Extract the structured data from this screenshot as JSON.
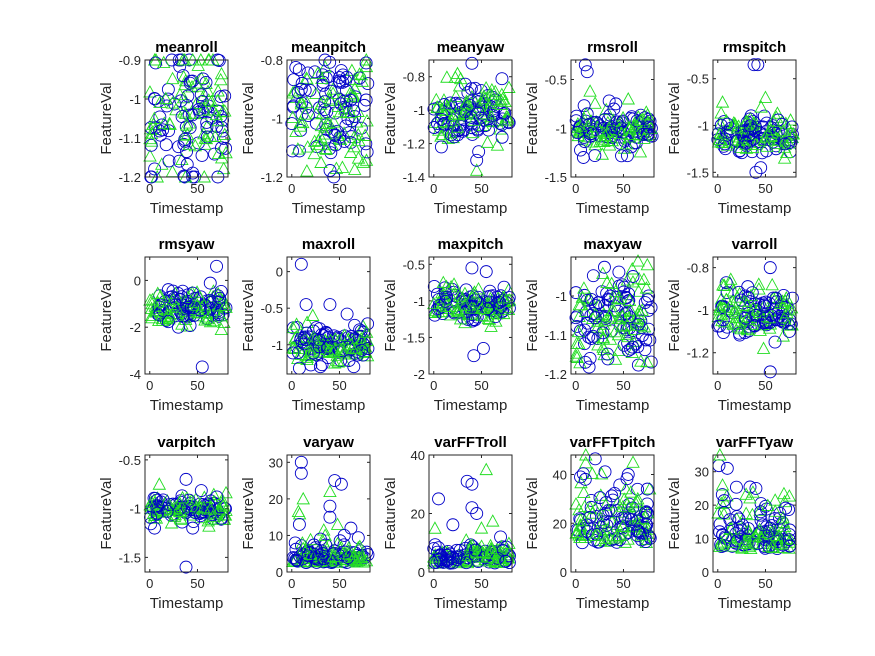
{
  "figure": {
    "background": "#ffffff"
  },
  "chart_data": [
    {
      "type": "scatter",
      "title": "meanroll",
      "xlabel": "Timestamp",
      "ylabel": "FeatureVal",
      "xlim": [
        -5,
        82
      ],
      "ylim": [
        -1.2,
        -0.9
      ],
      "xticks": [
        0,
        50
      ],
      "yticks": [
        -1.2,
        -1.1,
        -1,
        -0.9
      ],
      "ytick_labels": [
        "-1.2",
        "-1.1",
        "-1",
        "-0.9"
      ],
      "center": -1.04,
      "spread": 0.1,
      "skew": 0,
      "outliers": [
        [
          35,
          -0.94
        ],
        [
          45,
          -1.19
        ],
        [
          72,
          -1.14
        ]
      ]
    },
    {
      "type": "scatter",
      "title": "meanpitch",
      "xlabel": "Timestamp",
      "ylabel": "FeatureVal",
      "xlim": [
        -5,
        82
      ],
      "ylim": [
        -1.2,
        -0.8
      ],
      "xticks": [
        0,
        50
      ],
      "yticks": [
        -1.2,
        -1,
        -0.8
      ],
      "ytick_labels": [
        "-1.2",
        "-1",
        "-0.8"
      ],
      "center": -0.98,
      "spread": 0.09,
      "skew": 0,
      "outliers": [
        [
          50,
          -0.86
        ],
        [
          44,
          -1.2
        ],
        [
          75,
          -1.15
        ],
        [
          10,
          -0.9
        ]
      ]
    },
    {
      "type": "scatter",
      "title": "meanyaw",
      "xlabel": "Timestamp",
      "ylabel": "FeatureVal",
      "xlim": [
        -5,
        82
      ],
      "ylim": [
        -1.4,
        -0.7
      ],
      "xticks": [
        0,
        50
      ],
      "yticks": [
        -1.4,
        -1.2,
        -1,
        -0.8
      ],
      "ytick_labels": [
        "-1.4",
        "-1.2",
        "-1",
        "-0.8"
      ],
      "center": -1.02,
      "spread": 0.09,
      "skew": 0,
      "outliers": [
        [
          40,
          -0.72
        ],
        [
          8,
          -1.22
        ],
        [
          45,
          -1.36
        ],
        [
          45,
          -1.3
        ]
      ]
    },
    {
      "type": "scatter",
      "title": "rmsroll",
      "xlabel": "Timestamp",
      "ylabel": "FeatureVal",
      "xlim": [
        -5,
        82
      ],
      "ylim": [
        -1.5,
        -0.3
      ],
      "xticks": [
        0,
        50
      ],
      "yticks": [
        -1.5,
        -1,
        -0.5
      ],
      "ytick_labels": [
        "-1.5",
        "-1",
        "-0.5"
      ],
      "center": -1.02,
      "spread": 0.1,
      "skew": 0,
      "outliers": [
        [
          10,
          -0.35
        ],
        [
          12,
          -0.42
        ],
        [
          15,
          -0.62
        ],
        [
          35,
          -0.72
        ],
        [
          42,
          -0.75
        ],
        [
          55,
          -0.7
        ],
        [
          20,
          -1.28
        ],
        [
          8,
          -1.3
        ]
      ]
    },
    {
      "type": "scatter",
      "title": "rmspitch",
      "xlabel": "Timestamp",
      "ylabel": "FeatureVal",
      "xlim": [
        -5,
        82
      ],
      "ylim": [
        -1.55,
        -0.3
      ],
      "xticks": [
        0,
        50
      ],
      "yticks": [
        -1.5,
        -1,
        -0.5
      ],
      "ytick_labels": [
        "-1.5",
        "-1",
        "-0.5"
      ],
      "center": -1.08,
      "spread": 0.11,
      "skew": 0,
      "outliers": [
        [
          38,
          -0.35
        ],
        [
          42,
          -0.35
        ],
        [
          50,
          -0.7
        ],
        [
          45,
          -1.45
        ],
        [
          40,
          -1.5
        ],
        [
          5,
          -0.75
        ]
      ]
    },
    {
      "type": "scatter",
      "title": "rmsyaw",
      "xlabel": "Timestamp",
      "ylabel": "FeatureVal",
      "xlim": [
        -5,
        82
      ],
      "ylim": [
        -4,
        1
      ],
      "xticks": [
        0,
        50
      ],
      "yticks": [
        -4,
        -2,
        0
      ],
      "ytick_labels": [
        "-4",
        "-2",
        "0"
      ],
      "center": -1.1,
      "spread": 0.4,
      "skew": 0,
      "outliers": [
        [
          70,
          0.6
        ],
        [
          55,
          -3.7
        ],
        [
          75,
          -2.1
        ],
        [
          30,
          -2.0
        ]
      ]
    },
    {
      "type": "scatter",
      "title": "maxroll",
      "xlabel": "Timestamp",
      "ylabel": "FeatureVal",
      "xlim": [
        -5,
        82
      ],
      "ylim": [
        -1.4,
        0.2
      ],
      "xticks": [
        0,
        50
      ],
      "yticks": [
        -1,
        -0.5,
        0
      ],
      "ytick_labels": [
        "-1",
        "-0.5",
        "0"
      ],
      "center": -1.0,
      "spread": 0.12,
      "skew": 0,
      "outliers": [
        [
          10,
          0.1
        ],
        [
          15,
          -0.45
        ],
        [
          22,
          -0.6
        ],
        [
          40,
          -0.45
        ],
        [
          58,
          -0.58
        ],
        [
          5,
          -0.72
        ],
        [
          8,
          -1.32
        ],
        [
          30,
          -1.3
        ],
        [
          45,
          -1.25
        ],
        [
          65,
          -1.3
        ]
      ]
    },
    {
      "type": "scatter",
      "title": "maxpitch",
      "xlabel": "Timestamp",
      "ylabel": "FeatureVal",
      "xlim": [
        -5,
        82
      ],
      "ylim": [
        -2,
        -0.4
      ],
      "xticks": [
        0,
        50
      ],
      "yticks": [
        -2,
        -1.5,
        -1,
        -0.5
      ],
      "ytick_labels": [
        "-2",
        "-1.5",
        "-1",
        "-0.5"
      ],
      "center": -1.05,
      "spread": 0.11,
      "skew": 0,
      "outliers": [
        [
          40,
          -0.55
        ],
        [
          55,
          -0.6
        ],
        [
          10,
          -0.75
        ],
        [
          42,
          -1.75
        ],
        [
          52,
          -1.65
        ],
        [
          60,
          -1.35
        ]
      ]
    },
    {
      "type": "scatter",
      "title": "maxyaw",
      "xlabel": "Timestamp",
      "ylabel": "FeatureVal",
      "xlim": [
        -5,
        82
      ],
      "ylim": [
        -1.2,
        -0.9
      ],
      "xticks": [
        0,
        50
      ],
      "yticks": [
        -1.2,
        -1.1,
        -1
      ],
      "ytick_labels": [
        "-1.2",
        "-1.1",
        "-1"
      ],
      "center": -1.05,
      "spread": 0.06,
      "skew": 0,
      "outliers": [
        [
          10,
          -1.17
        ],
        [
          15,
          -1.16
        ],
        [
          45,
          -1.14
        ],
        [
          55,
          -1.14
        ],
        [
          65,
          -1.13
        ],
        [
          75,
          -0.92
        ],
        [
          60,
          -0.95
        ]
      ]
    },
    {
      "type": "scatter",
      "title": "varroll",
      "xlabel": "Timestamp",
      "ylabel": "FeatureVal",
      "xlim": [
        -5,
        82
      ],
      "ylim": [
        -1.3,
        -0.75
      ],
      "xticks": [
        0,
        50
      ],
      "yticks": [
        -1.2,
        -1,
        -0.8
      ],
      "ytick_labels": [
        "-1.2",
        "-1",
        "-0.8"
      ],
      "center": -1.0,
      "spread": 0.06,
      "skew": 0,
      "outliers": [
        [
          55,
          -0.8
        ],
        [
          55,
          -1.29
        ],
        [
          48,
          -1.18
        ],
        [
          60,
          -1.15
        ],
        [
          75,
          -1.1
        ]
      ]
    },
    {
      "type": "scatter",
      "title": "varpitch",
      "xlabel": "Timestamp",
      "ylabel": "FeatureVal",
      "xlim": [
        -5,
        82
      ],
      "ylim": [
        -1.65,
        -0.45
      ],
      "xticks": [
        0,
        50
      ],
      "yticks": [
        -1.5,
        -1,
        -0.5
      ],
      "ytick_labels": [
        "-1.5",
        "-1",
        "-0.5"
      ],
      "center": -1.0,
      "spread": 0.07,
      "skew": 0,
      "outliers": [
        [
          38,
          -1.6
        ],
        [
          38,
          -0.7
        ],
        [
          10,
          -0.75
        ],
        [
          5,
          -1.2
        ],
        [
          45,
          -1.2
        ],
        [
          62,
          -1.18
        ]
      ]
    },
    {
      "type": "scatter",
      "title": "varyaw",
      "xlabel": "Timestamp",
      "ylabel": "FeatureVal",
      "xlim": [
        -5,
        82
      ],
      "ylim": [
        0,
        32
      ],
      "xticks": [
        0,
        50
      ],
      "yticks": [
        0,
        10,
        20,
        30
      ],
      "ytick_labels": [
        "0",
        "10",
        "20",
        "30"
      ],
      "center": 2.5,
      "spread": 2.5,
      "skew": 1,
      "outliers": [
        [
          10,
          30
        ],
        [
          10,
          27
        ],
        [
          12,
          20
        ],
        [
          8,
          13
        ],
        [
          45,
          25
        ],
        [
          40,
          22
        ],
        [
          40,
          18
        ],
        [
          40,
          15
        ],
        [
          48,
          13
        ],
        [
          52,
          24
        ],
        [
          55,
          10
        ],
        [
          35,
          10
        ],
        [
          62,
          12
        ],
        [
          30,
          9
        ]
      ]
    },
    {
      "type": "scatter",
      "title": "varFFTroll",
      "xlabel": "Timestamp",
      "ylabel": "FeatureVal",
      "xlim": [
        -5,
        82
      ],
      "ylim": [
        0,
        40
      ],
      "xticks": [
        0,
        50
      ],
      "yticks": [
        0,
        20,
        40
      ],
      "ytick_labels": [
        "0",
        "20",
        "40"
      ],
      "center": 3,
      "spread": 3,
      "skew": 1,
      "outliers": [
        [
          35,
          31
        ],
        [
          40,
          30
        ],
        [
          55,
          35
        ],
        [
          40,
          22
        ],
        [
          45,
          20
        ],
        [
          50,
          15
        ],
        [
          5,
          25
        ],
        [
          0,
          8
        ],
        [
          60,
          8
        ],
        [
          70,
          12
        ]
      ]
    },
    {
      "type": "scatter",
      "title": "varFFTpitch",
      "xlabel": "Timestamp",
      "ylabel": "FeatureVal",
      "xlim": [
        -5,
        82
      ],
      "ylim": [
        0,
        48
      ],
      "xticks": [
        0,
        50
      ],
      "yticks": [
        0,
        20,
        40
      ],
      "ytick_labels": [
        "0",
        "20",
        "40"
      ],
      "center": 12,
      "spread": 10,
      "skew": 1,
      "outliers": [
        [
          5,
          39
        ],
        [
          10,
          38
        ],
        [
          60,
          45
        ],
        [
          55,
          40
        ],
        [
          75,
          34
        ],
        [
          65,
          30
        ]
      ]
    },
    {
      "type": "scatter",
      "title": "varFFTyaw",
      "xlabel": "Timestamp",
      "ylabel": "FeatureVal",
      "xlim": [
        -5,
        82
      ],
      "ylim": [
        0,
        35
      ],
      "xticks": [
        0,
        50
      ],
      "yticks": [
        0,
        10,
        20,
        30
      ],
      "ytick_labels": [
        "0",
        "10",
        "20",
        "30"
      ],
      "center": 7,
      "spread": 6,
      "skew": 1,
      "outliers": [
        [
          10,
          31
        ],
        [
          40,
          25
        ],
        [
          5,
          26
        ],
        [
          45,
          18
        ],
        [
          60,
          16
        ]
      ]
    }
  ],
  "series_colors": {
    "circles": "#0000c8",
    "triangles": "#22dd22"
  }
}
